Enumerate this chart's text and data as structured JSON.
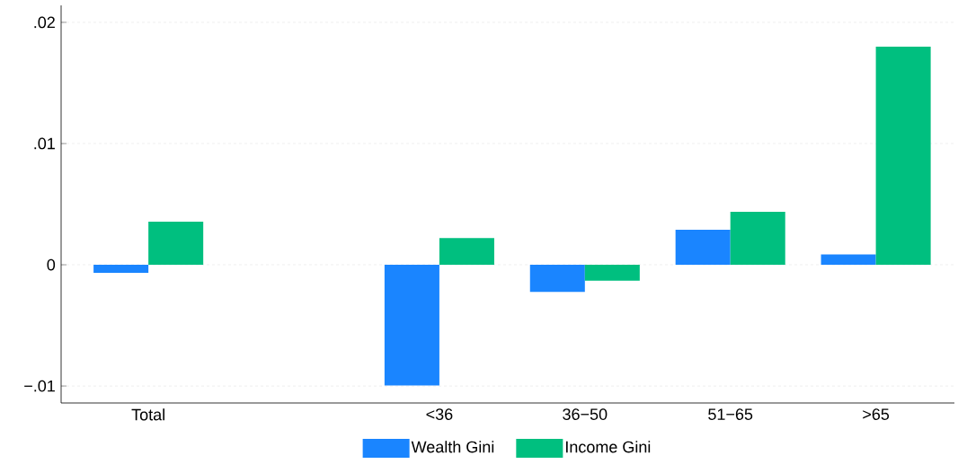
{
  "chart_data": {
    "type": "bar",
    "categories": [
      "Total",
      null,
      "<36",
      "36−50",
      "51−65",
      ">65"
    ],
    "series": [
      {
        "name": "Wealth Gini",
        "color": "#1a85ff",
        "values": [
          -0.00066,
          null,
          -0.00995,
          -0.00223,
          0.00289,
          0.00086
        ]
      },
      {
        "name": "Income Gini",
        "color": "#00bf7f",
        "values": [
          0.00355,
          null,
          0.0022,
          -0.00132,
          0.00437,
          0.018
        ]
      }
    ],
    "ylim": [
      -0.0114,
      0.0214
    ],
    "yticks": [
      {
        "value": -0.01,
        "label": "−.01"
      },
      0,
      {
        "value": 0.01,
        "label": ".01"
      },
      {
        "value": 0.02,
        "label": ".02"
      }
    ],
    "grid": "y",
    "legend": "bottom"
  }
}
